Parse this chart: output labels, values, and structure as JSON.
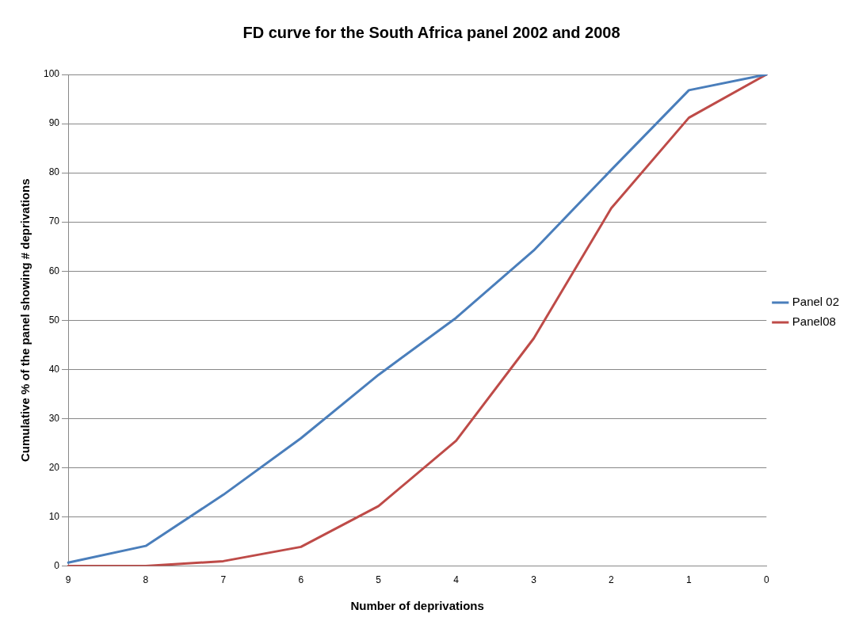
{
  "chart_data": {
    "type": "line",
    "title": "FD curve for the South Africa panel 2002 and 2008",
    "xlabel": "Number of deprivations",
    "ylabel": "Cumulative % of the panel showing # deprivations",
    "categories": [
      "9",
      "8",
      "7",
      "6",
      "5",
      "4",
      "3",
      "2",
      "1",
      "0"
    ],
    "series": [
      {
        "name": "Panel 02",
        "color": "#4a7ebb",
        "values": [
          0.7,
          4.1,
          14.5,
          26,
          38.9,
          50.5,
          64.2,
          80.6,
          96.8,
          100
        ]
      },
      {
        "name": "Panel08",
        "color": "#be4b48",
        "values": [
          0,
          0,
          1,
          3.9,
          12.2,
          25.5,
          46.3,
          72.8,
          91.2,
          100
        ]
      }
    ],
    "ylim": [
      0,
      100
    ],
    "yticks": [
      0,
      10,
      20,
      30,
      40,
      50,
      60,
      70,
      80,
      90,
      100
    ],
    "grid": "y",
    "legend": "right",
    "marker": "none",
    "line_style": "solid"
  }
}
